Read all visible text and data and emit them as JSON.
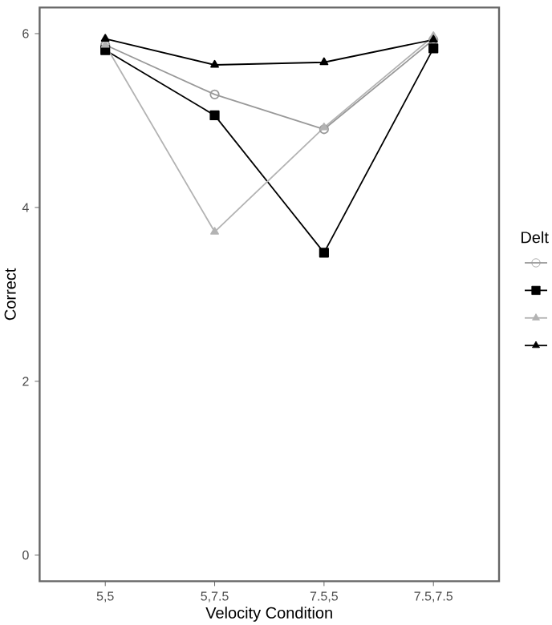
{
  "chart_data": {
    "type": "line",
    "xlabel": "Velocity Condition",
    "ylabel": "Correct",
    "legend_title": "Delt",
    "categories": [
      "5,5",
      "5,7.5",
      "7.5,5",
      "7.5,7.5"
    ],
    "series": [
      {
        "color": "#999999",
        "marker": "circle",
        "values": [
          5.87,
          5.3,
          4.9,
          5.93
        ]
      },
      {
        "color": "#000000",
        "marker": "square",
        "values": [
          5.81,
          5.06,
          3.48,
          5.83
        ]
      },
      {
        "color": "#b3b3b3",
        "marker": "triangle",
        "values": [
          5.87,
          3.72,
          4.92,
          5.97
        ]
      },
      {
        "color": "#000000",
        "marker": "triangle",
        "values": [
          5.94,
          5.64,
          5.67,
          5.93
        ]
      }
    ],
    "ylim": [
      -0.3,
      6.3
    ],
    "yticks": [
      0,
      2,
      4,
      6
    ],
    "grid": false,
    "line_style": "solid"
  }
}
